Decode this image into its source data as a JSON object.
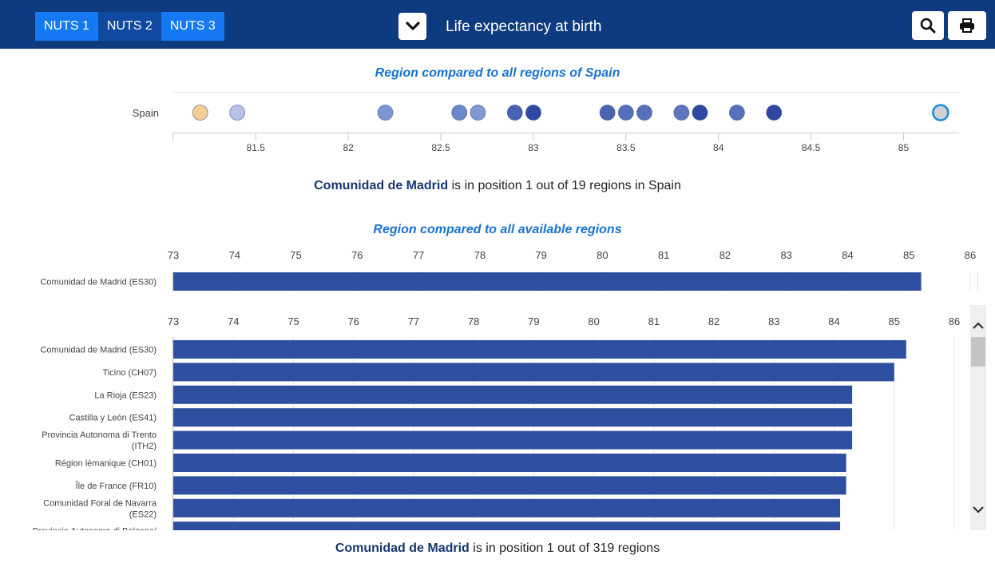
{
  "header": {
    "nuts_buttons": [
      {
        "label": "NUTS 1",
        "active": true
      },
      {
        "label": "NUTS 2",
        "active": false
      },
      {
        "label": "NUTS 3",
        "active": true
      }
    ],
    "indicator_title": "Life expectancy at birth",
    "icons": {
      "dropdown": "chevron-down-icon",
      "search": "search-icon",
      "print": "print-icon"
    }
  },
  "spain_section": {
    "title": "Region compared to all regions of Spain",
    "position": {
      "region": "Comunidad de Madrid",
      "text": " is in position 1 out of 19 regions in Spain"
    }
  },
  "all_section": {
    "title": "Region compared to all available regions",
    "position": {
      "region": "Comunidad de Madrid",
      "text": " is in position 1 out of 319 regions"
    }
  },
  "colors": {
    "bar": "#2e4f9f",
    "header": "#0e3a7f",
    "accent": "#1a73d2"
  },
  "chart_data": [
    {
      "type": "scatter",
      "title": "Region compared to all regions of Spain",
      "category": "Spain",
      "x_ticks": [
        81.5,
        82,
        82.5,
        83,
        83.5,
        84,
        84.5,
        85
      ],
      "xlim": [
        81.05,
        85.3
      ],
      "points": [
        {
          "x": 81.2,
          "color": "#f3cf95"
        },
        {
          "x": 81.4,
          "color": "#b7c2e8"
        },
        {
          "x": 82.2,
          "color": "#7d97d3"
        },
        {
          "x": 82.6,
          "color": "#6d87cc"
        },
        {
          "x": 82.7,
          "color": "#8099d4"
        },
        {
          "x": 82.9,
          "color": "#4a63b2"
        },
        {
          "x": 83.0,
          "color": "#2f48a2"
        },
        {
          "x": 83.4,
          "color": "#4a63b2"
        },
        {
          "x": 83.5,
          "color": "#5671bb"
        },
        {
          "x": 83.6,
          "color": "#5671bb"
        },
        {
          "x": 83.8,
          "color": "#5d76be"
        },
        {
          "x": 83.9,
          "color": "#2f48a2"
        },
        {
          "x": 84.1,
          "color": "#5671bb"
        },
        {
          "x": 84.3,
          "color": "#2f48a2"
        },
        {
          "x": 85.2,
          "color": "#d0d0d0",
          "highlight": true
        }
      ]
    },
    {
      "type": "bar",
      "orientation": "horizontal",
      "x_ticks": [
        73,
        74,
        75,
        76,
        77,
        78,
        79,
        80,
        81,
        82,
        83,
        84,
        85,
        86
      ],
      "xlim": [
        73,
        86
      ],
      "categories": [
        "Comunidad de Madrid (ES30)"
      ],
      "values": [
        85.2
      ]
    },
    {
      "type": "bar",
      "orientation": "horizontal",
      "x_ticks": [
        73,
        74,
        75,
        76,
        77,
        78,
        79,
        80,
        81,
        82,
        83,
        84,
        85,
        86
      ],
      "xlim": [
        73,
        86
      ],
      "categories": [
        [
          "Comunidad de Madrid (ES30)"
        ],
        [
          "Ticino (CH07)"
        ],
        [
          "La Rioja (ES23)"
        ],
        [
          "Castilla y León (ES41)"
        ],
        [
          "Provincia Autonoma di Trento",
          "(ITH2)"
        ],
        [
          "Région lémanique (CH01)"
        ],
        [
          "Île de France (FR10)"
        ],
        [
          "Comunidad Foral de Navarra",
          "(ES22)"
        ],
        [
          "Provincia Autonoma di Bolzano/",
          ""
        ]
      ],
      "values": [
        85.2,
        85.0,
        84.3,
        84.3,
        84.3,
        84.2,
        84.2,
        84.1,
        84.1
      ]
    }
  ]
}
